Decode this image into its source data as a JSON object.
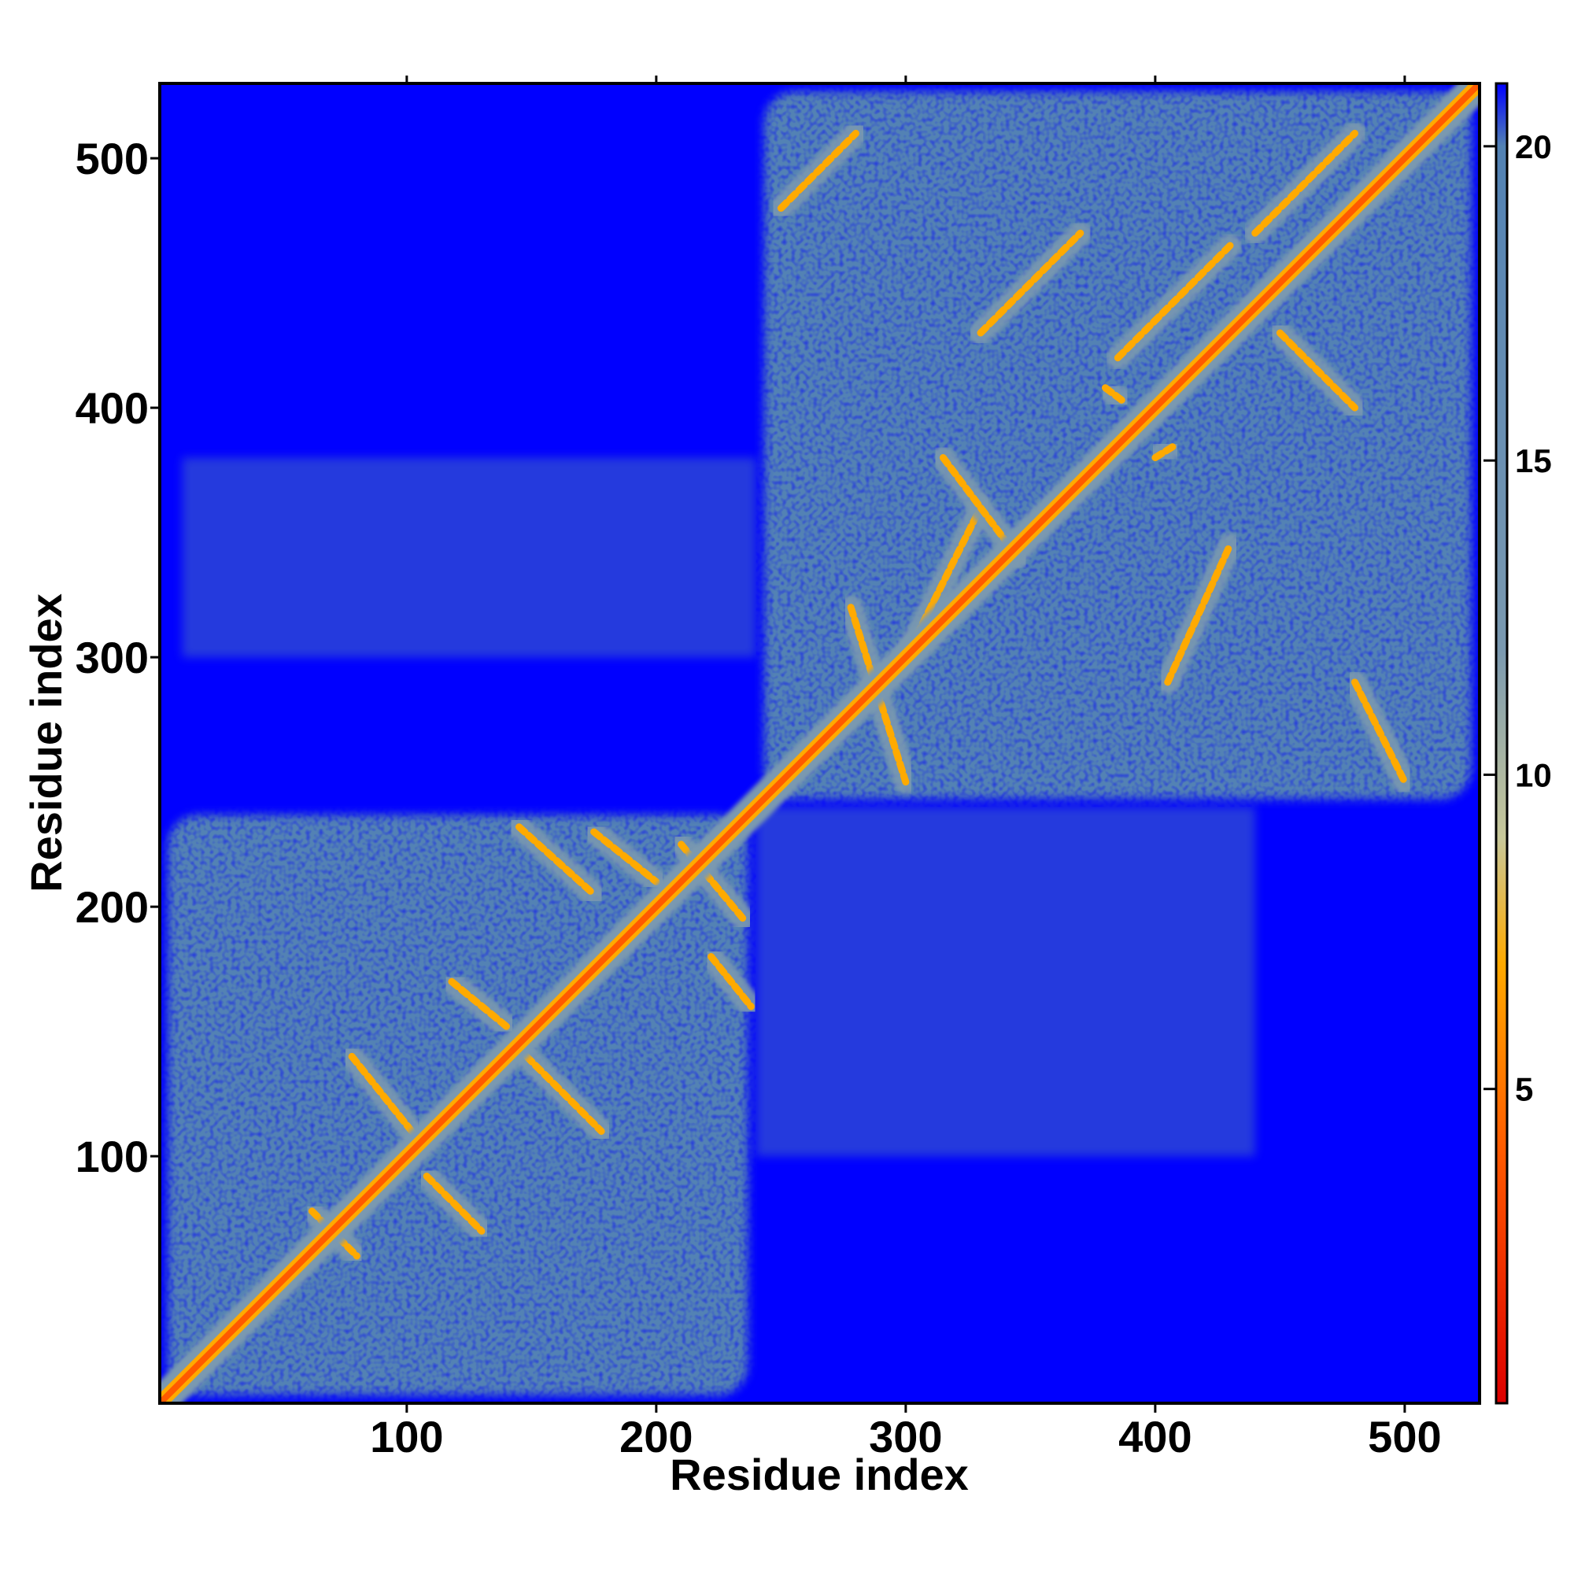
{
  "chart_data": {
    "type": "heatmap",
    "xlabel": "Residue index",
    "ylabel": "Residue index",
    "xlim": [
      1,
      530
    ],
    "ylim": [
      1,
      530
    ],
    "x_ticks": [
      100,
      200,
      300,
      400,
      500
    ],
    "y_ticks": [
      100,
      200,
      300,
      400,
      500
    ],
    "colorbar": {
      "range": [
        0,
        21
      ],
      "ticks": [
        5,
        10,
        15,
        20
      ],
      "stops": [
        {
          "value": 0,
          "color": "#dd0000"
        },
        {
          "value": 4,
          "color": "#ff5a00"
        },
        {
          "value": 7,
          "color": "#ffaa00"
        },
        {
          "value": 9,
          "color": "#c8c89a"
        },
        {
          "value": 12,
          "color": "#7a99b0"
        },
        {
          "value": 20,
          "color": "#5282b4"
        },
        {
          "value": 21,
          "color": "#0000ff"
        }
      ]
    },
    "background_value": 21,
    "domains": [
      {
        "range": [
          1,
          240
        ],
        "label": ""
      },
      {
        "range": [
          240,
          530
        ],
        "label": ""
      }
    ],
    "contact_bands": [
      {
        "from": [
          62,
          78
        ],
        "to": [
          80,
          60
        ]
      },
      {
        "from": [
          78,
          140
        ],
        "to": [
          102,
          110
        ]
      },
      {
        "from": [
          118,
          170
        ],
        "to": [
          140,
          152
        ]
      },
      {
        "from": [
          108,
          92
        ],
        "to": [
          130,
          70
        ]
      },
      {
        "from": [
          145,
          232
        ],
        "to": [
          175,
          205
        ]
      },
      {
        "from": [
          175,
          230
        ],
        "to": [
          200,
          210
        ]
      },
      {
        "from": [
          148,
          140
        ],
        "to": [
          178,
          110
        ]
      },
      {
        "from": [
          222,
          180
        ],
        "to": [
          238,
          160
        ]
      },
      {
        "from": [
          210,
          225
        ],
        "to": [
          235,
          195
        ]
      },
      {
        "from": [
          250,
          480
        ],
        "to": [
          280,
          510
        ]
      },
      {
        "from": [
          278,
          320
        ],
        "to": [
          300,
          250
        ]
      },
      {
        "from": [
          300,
          300
        ],
        "to": [
          330,
          360
        ]
      },
      {
        "from": [
          330,
          430
        ],
        "to": [
          370,
          470
        ]
      },
      {
        "from": [
          315,
          380
        ],
        "to": [
          345,
          340
        ]
      },
      {
        "from": [
          385,
          420
        ],
        "to": [
          430,
          465
        ]
      },
      {
        "from": [
          405,
          290
        ],
        "to": [
          430,
          345
        ]
      },
      {
        "from": [
          440,
          470
        ],
        "to": [
          480,
          510
        ]
      },
      {
        "from": [
          450,
          430
        ],
        "to": [
          480,
          400
        ]
      },
      {
        "from": [
          480,
          290
        ],
        "to": [
          500,
          250
        ]
      },
      {
        "from": [
          380,
          408
        ],
        "to": [
          388,
          402
        ]
      },
      {
        "from": [
          400,
          380
        ],
        "to": [
          408,
          385
        ]
      }
    ]
  }
}
